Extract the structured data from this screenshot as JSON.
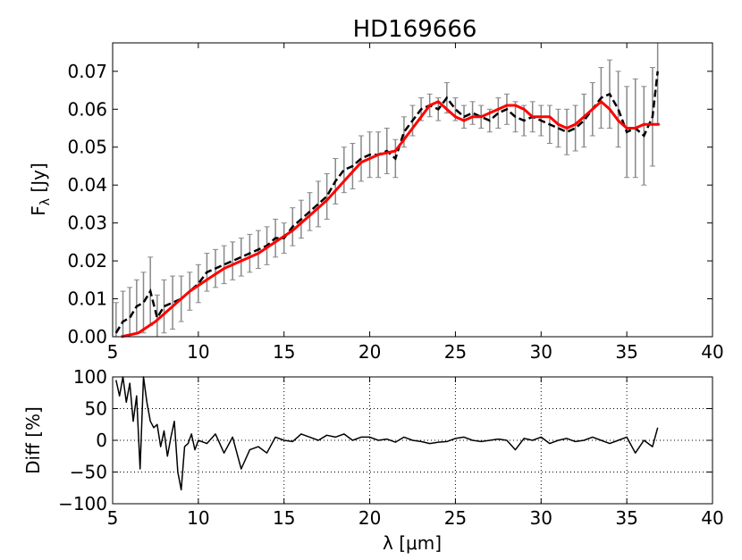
{
  "chart_data": [
    {
      "type": "line",
      "title": "HD169666",
      "ylabel_main": "F",
      "ylabel_sub": "λ",
      "ylabel_unit": "[Jy]",
      "xlim": [
        5,
        40
      ],
      "ylim": [
        0,
        0.0775
      ],
      "xticks": [
        "5",
        "10",
        "15",
        "20",
        "25",
        "30",
        "35",
        "40"
      ],
      "yticks": [
        "0.00",
        "0.01",
        "0.02",
        "0.03",
        "0.04",
        "0.05",
        "0.06",
        "0.07"
      ],
      "grid": false,
      "series": [
        {
          "style": "dashed-with-errorbars",
          "color": "#000000",
          "errorbar_color": "#888888",
          "x": [
            5.2,
            5.6,
            6.0,
            6.4,
            6.8,
            7.2,
            7.6,
            8.0,
            8.5,
            9.0,
            9.5,
            10.0,
            10.5,
            11.0,
            11.5,
            12.0,
            12.5,
            13.0,
            13.5,
            14.0,
            14.5,
            15.0,
            15.5,
            16.0,
            16.5,
            17.0,
            17.5,
            18.0,
            18.5,
            19.0,
            19.5,
            20.0,
            20.5,
            21.0,
            21.5,
            22.0,
            22.5,
            23.0,
            23.5,
            24.0,
            24.5,
            25.0,
            25.5,
            26.0,
            26.5,
            27.0,
            27.5,
            28.0,
            28.5,
            29.0,
            29.5,
            30.0,
            30.5,
            31.0,
            31.5,
            32.0,
            32.5,
            33.0,
            33.5,
            34.0,
            34.5,
            35.0,
            35.5,
            36.0,
            36.5,
            36.8
          ],
          "y": [
            0.001,
            0.004,
            0.005,
            0.008,
            0.009,
            0.012,
            0.005,
            0.008,
            0.009,
            0.01,
            0.012,
            0.014,
            0.017,
            0.018,
            0.019,
            0.02,
            0.021,
            0.022,
            0.023,
            0.024,
            0.026,
            0.026,
            0.029,
            0.031,
            0.033,
            0.035,
            0.037,
            0.041,
            0.044,
            0.045,
            0.047,
            0.048,
            0.048,
            0.049,
            0.047,
            0.054,
            0.057,
            0.06,
            0.061,
            0.06,
            0.063,
            0.06,
            0.058,
            0.059,
            0.058,
            0.057,
            0.059,
            0.06,
            0.058,
            0.057,
            0.058,
            0.057,
            0.056,
            0.055,
            0.054,
            0.055,
            0.057,
            0.06,
            0.063,
            0.064,
            0.06,
            0.054,
            0.055,
            0.053,
            0.058,
            0.07
          ],
          "err": [
            0.008,
            0.008,
            0.008,
            0.007,
            0.008,
            0.009,
            0.006,
            0.007,
            0.007,
            0.006,
            0.005,
            0.005,
            0.005,
            0.005,
            0.005,
            0.005,
            0.005,
            0.005,
            0.005,
            0.005,
            0.005,
            0.004,
            0.005,
            0.005,
            0.005,
            0.006,
            0.006,
            0.006,
            0.006,
            0.006,
            0.006,
            0.006,
            0.006,
            0.006,
            0.005,
            0.004,
            0.004,
            0.003,
            0.003,
            0.003,
            0.004,
            0.003,
            0.003,
            0.003,
            0.003,
            0.003,
            0.004,
            0.004,
            0.004,
            0.004,
            0.004,
            0.004,
            0.005,
            0.005,
            0.006,
            0.006,
            0.007,
            0.007,
            0.008,
            0.009,
            0.01,
            0.012,
            0.013,
            0.013,
            0.013,
            0.014
          ]
        },
        {
          "style": "solid",
          "color": "#ff0000",
          "x": [
            5.5,
            6.5,
            7.5,
            8.5,
            9.5,
            10.5,
            11.5,
            12.5,
            13.5,
            14.5,
            15.5,
            16.5,
            17.5,
            18.5,
            19.5,
            20.5,
            21.5,
            22.5,
            23.0,
            23.5,
            24.0,
            24.5,
            25.0,
            25.5,
            26.0,
            26.5,
            27.0,
            27.5,
            28.0,
            28.5,
            29.0,
            29.5,
            30.0,
            30.5,
            31.0,
            31.5,
            32.0,
            32.5,
            33.0,
            33.5,
            34.0,
            34.5,
            35.0,
            35.5,
            36.0,
            36.5,
            36.9
          ],
          "y": [
            0.0,
            0.001,
            0.004,
            0.008,
            0.012,
            0.015,
            0.018,
            0.02,
            0.022,
            0.025,
            0.028,
            0.032,
            0.036,
            0.041,
            0.046,
            0.048,
            0.049,
            0.055,
            0.058,
            0.061,
            0.062,
            0.06,
            0.058,
            0.057,
            0.058,
            0.058,
            0.059,
            0.06,
            0.061,
            0.061,
            0.06,
            0.058,
            0.058,
            0.058,
            0.056,
            0.055,
            0.056,
            0.058,
            0.06,
            0.062,
            0.06,
            0.057,
            0.055,
            0.055,
            0.056,
            0.056,
            0.056
          ]
        }
      ]
    },
    {
      "type": "line",
      "ylabel": "Diff [%]",
      "xlabel_main": "λ",
      "xlabel_unit": "[μm]",
      "xlim": [
        5,
        40
      ],
      "ylim": [
        -100,
        100
      ],
      "xticks": [
        "5",
        "10",
        "15",
        "20",
        "25",
        "30",
        "35",
        "40"
      ],
      "yticks": [
        "−100",
        "−50",
        "0",
        "50",
        "100"
      ],
      "grid": true,
      "series": [
        {
          "style": "solid",
          "color": "#000000",
          "x": [
            5.2,
            5.4,
            5.6,
            5.8,
            6.0,
            6.2,
            6.4,
            6.6,
            6.8,
            7.0,
            7.2,
            7.4,
            7.6,
            7.8,
            8.0,
            8.2,
            8.4,
            8.6,
            8.8,
            9.0,
            9.2,
            9.4,
            9.6,
            9.8,
            10.0,
            10.5,
            11.0,
            11.5,
            12.0,
            12.5,
            13.0,
            13.5,
            14.0,
            14.5,
            15.0,
            15.5,
            16.0,
            16.5,
            17.0,
            17.5,
            18.0,
            18.5,
            19.0,
            19.5,
            20.0,
            20.5,
            21.0,
            21.5,
            22.0,
            22.5,
            23.0,
            23.5,
            24.0,
            24.5,
            25.0,
            25.5,
            26.0,
            26.5,
            27.0,
            27.5,
            28.0,
            28.5,
            29.0,
            29.5,
            30.0,
            30.5,
            31.0,
            31.5,
            32.0,
            32.5,
            33.0,
            33.5,
            34.0,
            34.5,
            35.0,
            35.5,
            36.0,
            36.5,
            36.8
          ],
          "y": [
            95,
            70,
            100,
            60,
            90,
            30,
            70,
            -45,
            100,
            60,
            30,
            20,
            25,
            -10,
            15,
            -25,
            5,
            30,
            -50,
            -78,
            -10,
            -5,
            10,
            -15,
            0,
            -5,
            10,
            -20,
            5,
            -45,
            -15,
            -10,
            -20,
            5,
            0,
            -2,
            10,
            5,
            0,
            8,
            5,
            10,
            0,
            5,
            5,
            0,
            2,
            -3,
            5,
            0,
            -2,
            -5,
            -3,
            -2,
            3,
            5,
            0,
            -2,
            0,
            2,
            0,
            -15,
            3,
            0,
            5,
            -5,
            0,
            3,
            -2,
            0,
            5,
            0,
            -5,
            0,
            5,
            -20,
            0,
            -10,
            20
          ]
        }
      ]
    }
  ]
}
